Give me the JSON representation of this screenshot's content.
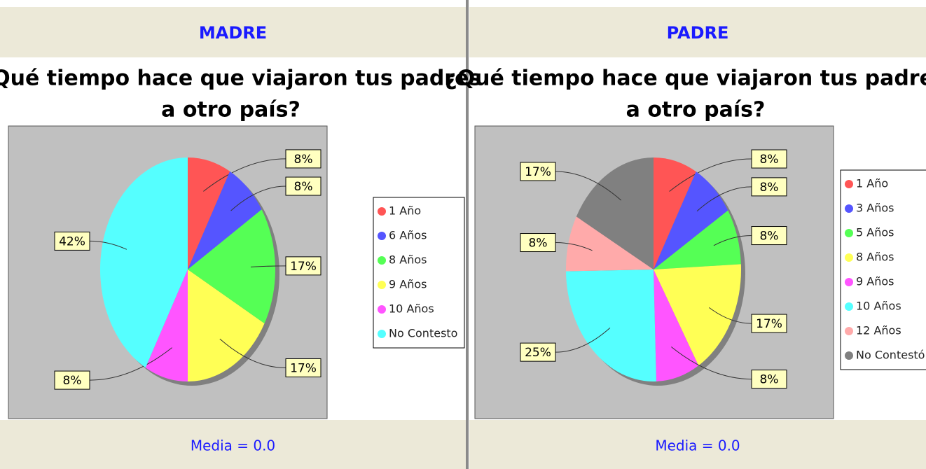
{
  "chart_data": [
    {
      "type": "pie",
      "header": "MADRE",
      "title": [
        "¿Qué tiempo hace que viajaron tus padres",
        "a otro país?"
      ],
      "categories": [
        "1 Año",
        "6 Años",
        "8 Años",
        "9 Años",
        "10 Años",
        "No Contesto"
      ],
      "values": [
        8,
        8,
        17,
        17,
        8,
        42
      ],
      "value_labels": [
        "8%",
        "8%",
        "17%",
        "17%",
        "8%",
        "42%"
      ],
      "colors": [
        "#ff5555",
        "#5555ff",
        "#55ff55",
        "#ffff55",
        "#ff55ff",
        "#55ffff"
      ],
      "footer": "Media = 0.0"
    },
    {
      "type": "pie",
      "header": "PADRE",
      "title": [
        "¿Qué tiempo hace que viajaron tus padres",
        "a otro país?"
      ],
      "categories": [
        "1 Año",
        "3 Años",
        "5 Años",
        "8 Años",
        "9 Años",
        "10 Años",
        "12 Años",
        "No Contestó"
      ],
      "values": [
        8,
        8,
        8,
        17,
        8,
        25,
        8,
        17
      ],
      "value_labels": [
        "8%",
        "8%",
        "8%",
        "17%",
        "8%",
        "25%",
        "8%",
        "17%"
      ],
      "colors": [
        "#ff5555",
        "#5555ff",
        "#55ff55",
        "#ffff55",
        "#ff55ff",
        "#55ffff",
        "#ffaaaa",
        "#808080"
      ],
      "footer": "Media = 0.0"
    }
  ]
}
